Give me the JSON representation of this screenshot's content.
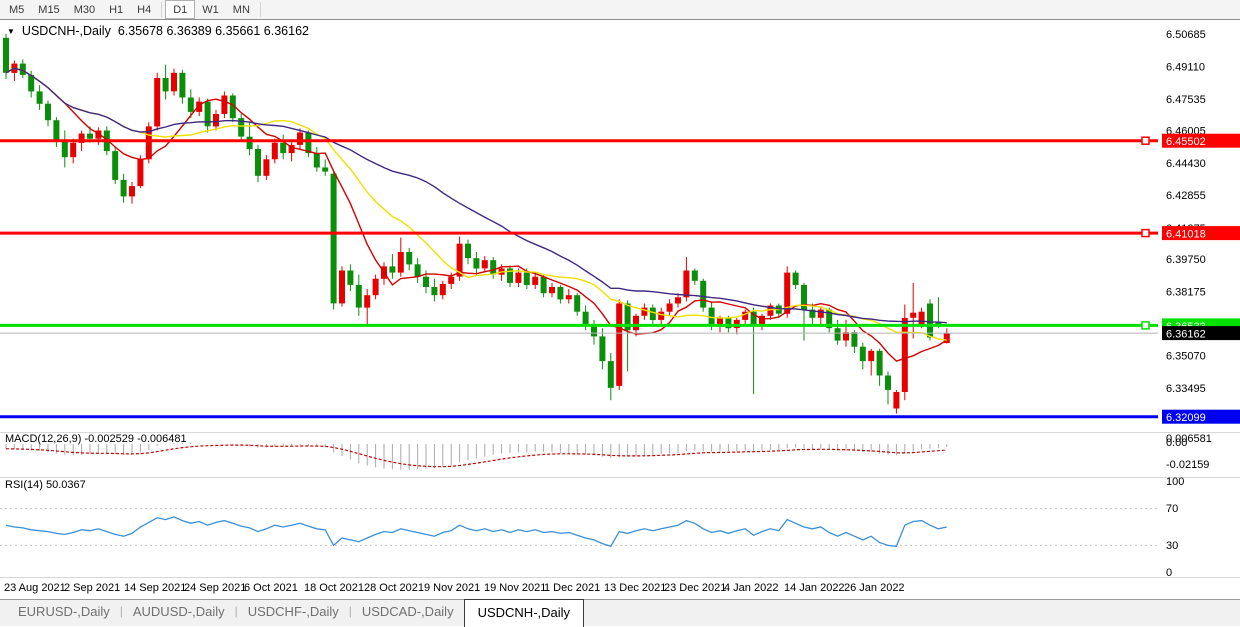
{
  "toolbar": {
    "timeframes": [
      "M5",
      "M15",
      "M30",
      "H1",
      "H4",
      "D1",
      "W1",
      "MN"
    ],
    "active": "D1"
  },
  "title": {
    "symbol": "USDCNH-,Daily",
    "quote": "6.35678 6.36389 6.35661 6.36162"
  },
  "indicator_labels": {
    "macd": "MACD(12,26,9) -0.002529 -0.006481",
    "rsi": "RSI(14) 50.0367"
  },
  "macd_scale": [
    "0.006581",
    "0.00",
    "-0.02159"
  ],
  "rsi_scale": [
    "100",
    "70",
    "30",
    "0"
  ],
  "tabs": {
    "items": [
      "EURUSD-,Daily",
      "AUDUSD-,Daily",
      "USDCHF-,Daily",
      "USDCAD-,Daily",
      "USDCNH-,Daily"
    ],
    "active": "USDCNH-,Daily"
  },
  "chart_data": {
    "type": "candlestick",
    "symbol": "USDCNH",
    "timeframe": "Daily",
    "title": "USDCNH-,Daily",
    "current_ohlc": {
      "open": 6.35678,
      "high": 6.36389,
      "low": 6.35661,
      "close": 6.36162
    },
    "ylim": [
      6.315,
      6.508
    ],
    "y_ticks": [
      6.50685,
      6.4911,
      6.47535,
      6.46005,
      6.4443,
      6.42855,
      6.41275,
      6.3975,
      6.38175,
      6.3507,
      6.33495
    ],
    "x_dates": [
      "23 Aug 2021",
      "2 Sep 2021",
      "14 Sep 2021",
      "24 Sep 2021",
      "6 Oct 2021",
      "18 Oct 2021",
      "28 Oct 2021",
      "9 Nov 2021",
      "19 Nov 2021",
      "1 Dec 2021",
      "13 Dec 2021",
      "23 Dec 2021",
      "4 Jan 2022",
      "14 Jan 2022",
      "26 Jan 2022"
    ],
    "hlines": [
      {
        "price": 6.45502,
        "label": "6.45502",
        "color": "#fe0000",
        "w": 3,
        "marker": true
      },
      {
        "price": 6.41018,
        "label": "6.41018",
        "color": "#fe0000",
        "w": 3,
        "marker": true
      },
      {
        "price": 6.36533,
        "label": "6.36533",
        "color": "#00e100",
        "w": 3,
        "marker": true
      },
      {
        "price": 6.36162,
        "label": "6.36162",
        "color": "#b4b4b4",
        "w": 1,
        "marker": false,
        "label_bg": "#000000"
      },
      {
        "price": 6.32099,
        "label": "6.32099",
        "color": "#0000f0",
        "w": 3,
        "marker": false
      }
    ],
    "candle_colors": {
      "bull": "#e60000",
      "bear": "#0b8f0b"
    },
    "ma_periods": {
      "fast": 8,
      "mid": 17,
      "slow": 34
    },
    "ma_colors": {
      "fast": "#d40000",
      "mid": "#f0e000",
      "slow": "#402882"
    },
    "candles": [
      [
        6.505,
        6.5069,
        6.485,
        6.488
      ],
      [
        6.488,
        6.494,
        6.484,
        6.4925
      ],
      [
        6.4925,
        6.4945,
        6.4855,
        6.487
      ],
      [
        6.487,
        6.489,
        6.476,
        6.479
      ],
      [
        6.479,
        6.482,
        6.47,
        6.473
      ],
      [
        6.473,
        6.4745,
        6.462,
        6.465
      ],
      [
        6.465,
        6.4665,
        6.452,
        6.4545
      ],
      [
        6.4545,
        6.46,
        6.442,
        6.447
      ],
      [
        6.447,
        6.456,
        6.444,
        6.454
      ],
      [
        6.454,
        6.46,
        6.45,
        6.4585
      ],
      [
        6.4585,
        6.462,
        6.454,
        6.456
      ],
      [
        6.456,
        6.4615,
        6.453,
        6.46
      ],
      [
        6.46,
        6.462,
        6.448,
        6.45
      ],
      [
        6.45,
        6.452,
        6.434,
        6.436
      ],
      [
        6.436,
        6.439,
        6.425,
        6.428
      ],
      [
        6.428,
        6.435,
        6.4245,
        6.433
      ],
      [
        6.433,
        6.448,
        6.432,
        6.446
      ],
      [
        6.446,
        6.464,
        6.444,
        6.462
      ],
      [
        6.462,
        6.488,
        6.46,
        6.4855
      ],
      [
        6.4855,
        6.492,
        6.475,
        6.479
      ],
      [
        6.479,
        6.49,
        6.477,
        6.488
      ],
      [
        6.488,
        6.4895,
        6.473,
        6.476
      ],
      [
        6.476,
        6.48,
        6.466,
        6.469
      ],
      [
        6.469,
        6.476,
        6.467,
        6.474
      ],
      [
        6.474,
        6.4755,
        6.459,
        6.462
      ],
      [
        6.462,
        6.47,
        6.46,
        6.468
      ],
      [
        6.468,
        6.479,
        6.466,
        6.477
      ],
      [
        6.477,
        6.478,
        6.464,
        6.466
      ],
      [
        6.466,
        6.468,
        6.455,
        6.457
      ],
      [
        6.457,
        6.464,
        6.448,
        6.451
      ],
      [
        6.451,
        6.453,
        6.435,
        6.438
      ],
      [
        6.438,
        6.448,
        6.436,
        6.446
      ],
      [
        6.446,
        6.456,
        6.444,
        6.454
      ],
      [
        6.454,
        6.458,
        6.446,
        6.449
      ],
      [
        6.449,
        6.4545,
        6.445,
        6.453
      ],
      [
        6.453,
        6.461,
        6.451,
        6.459
      ],
      [
        6.459,
        6.46,
        6.447,
        6.449
      ],
      [
        6.449,
        6.452,
        6.44,
        6.442
      ],
      [
        6.442,
        6.446,
        6.438,
        6.44
      ],
      [
        6.439,
        6.44,
        6.373,
        6.376
      ],
      [
        6.376,
        6.394,
        6.3745,
        6.392
      ],
      [
        6.392,
        6.395,
        6.382,
        6.385
      ],
      [
        6.385,
        6.39,
        6.37,
        6.374
      ],
      [
        6.374,
        6.383,
        6.366,
        6.38
      ],
      [
        6.38,
        6.39,
        6.378,
        6.388
      ],
      [
        6.388,
        6.396,
        6.385,
        6.394
      ],
      [
        6.394,
        6.4,
        6.388,
        6.391
      ],
      [
        6.391,
        6.408,
        6.389,
        6.401
      ],
      [
        6.401,
        6.403,
        6.392,
        6.395
      ],
      [
        6.395,
        6.398,
        6.386,
        6.389
      ],
      [
        6.389,
        6.392,
        6.381,
        6.384
      ],
      [
        6.384,
        6.388,
        6.377,
        6.38
      ],
      [
        6.38,
        6.387,
        6.378,
        6.3855
      ],
      [
        6.3855,
        6.391,
        6.383,
        6.389
      ],
      [
        6.389,
        6.4085,
        6.387,
        6.405
      ],
      [
        6.405,
        6.407,
        6.395,
        6.398
      ],
      [
        6.398,
        6.401,
        6.39,
        6.393
      ],
      [
        6.393,
        6.399,
        6.391,
        6.397
      ],
      [
        6.397,
        6.3985,
        6.388,
        6.39
      ],
      [
        6.39,
        6.395,
        6.387,
        6.393
      ],
      [
        6.393,
        6.3945,
        6.384,
        6.386
      ],
      [
        6.386,
        6.393,
        6.384,
        6.391
      ],
      [
        6.391,
        6.393,
        6.383,
        6.385
      ],
      [
        6.385,
        6.391,
        6.383,
        6.389
      ],
      [
        6.389,
        6.39,
        6.379,
        6.381
      ],
      [
        6.381,
        6.386,
        6.379,
        6.384
      ],
      [
        6.384,
        6.385,
        6.376,
        6.378
      ],
      [
        6.378,
        6.383,
        6.376,
        6.38
      ],
      [
        6.38,
        6.381,
        6.37,
        6.372
      ],
      [
        6.372,
        6.375,
        6.363,
        6.365
      ],
      [
        6.365,
        6.368,
        6.356,
        6.36
      ],
      [
        6.36,
        6.364,
        6.344,
        6.348
      ],
      [
        6.348,
        6.352,
        6.329,
        6.335
      ],
      [
        6.336,
        6.378,
        6.334,
        6.376
      ],
      [
        6.376,
        6.3775,
        6.343,
        6.363
      ],
      [
        6.363,
        6.371,
        6.36,
        6.37
      ],
      [
        6.37,
        6.376,
        6.368,
        6.374
      ],
      [
        6.374,
        6.3755,
        6.366,
        6.368
      ],
      [
        6.368,
        6.374,
        6.366,
        6.372
      ],
      [
        6.372,
        6.378,
        6.37,
        6.376
      ],
      [
        6.376,
        6.381,
        6.374,
        6.379
      ],
      [
        6.379,
        6.3985,
        6.377,
        6.392
      ],
      [
        6.392,
        6.393,
        6.385,
        6.387
      ],
      [
        6.387,
        6.388,
        6.372,
        6.374
      ],
      [
        6.374,
        6.377,
        6.363,
        6.365
      ],
      [
        6.365,
        6.37,
        6.362,
        6.369
      ],
      [
        6.369,
        6.37,
        6.362,
        6.364
      ],
      [
        6.364,
        6.369,
        6.361,
        6.368
      ],
      [
        6.368,
        6.373,
        6.365,
        6.372
      ],
      [
        6.372,
        6.374,
        6.332,
        6.366
      ],
      [
        6.366,
        6.371,
        6.363,
        6.37
      ],
      [
        6.37,
        6.376,
        6.368,
        6.375
      ],
      [
        6.375,
        6.376,
        6.369,
        6.371
      ],
      [
        6.371,
        6.394,
        6.369,
        6.391
      ],
      [
        6.391,
        6.392,
        6.383,
        6.385
      ],
      [
        6.385,
        6.386,
        6.358,
        6.373
      ],
      [
        6.373,
        6.376,
        6.365,
        6.369
      ],
      [
        6.369,
        6.374,
        6.366,
        6.373
      ],
      [
        6.373,
        6.374,
        6.362,
        6.364
      ],
      [
        6.364,
        6.368,
        6.356,
        6.358
      ],
      [
        6.358,
        6.368,
        6.355,
        6.362
      ],
      [
        6.362,
        6.363,
        6.352,
        6.355
      ],
      [
        6.355,
        6.357,
        6.344,
        6.348
      ],
      [
        6.348,
        6.354,
        6.341,
        6.353
      ],
      [
        6.353,
        6.354,
        6.336,
        6.341
      ],
      [
        6.341,
        6.343,
        6.327,
        6.334
      ],
      [
        6.325,
        6.334,
        6.3225,
        6.333
      ],
      [
        6.333,
        6.3755,
        6.329,
        6.369
      ],
      [
        6.369,
        6.386,
        6.359,
        6.3715
      ],
      [
        6.366,
        6.374,
        6.364,
        6.372
      ],
      [
        6.376,
        6.378,
        6.358,
        6.3595
      ],
      [
        6.367,
        6.379,
        6.364,
        6.365
      ],
      [
        6.35678,
        6.36389,
        6.35661,
        6.36162
      ]
    ],
    "macd": {
      "params": "12,26,9",
      "main_last": -0.002529,
      "signal_last": -0.006481,
      "bar_color": "#a9a9a9",
      "signal_color": "#cc0000",
      "main": [
        -0.004,
        -0.0045,
        -0.005,
        -0.0055,
        -0.006,
        -0.007,
        -0.008,
        -0.009,
        -0.0095,
        -0.009,
        -0.0085,
        -0.008,
        -0.008,
        -0.0085,
        -0.009,
        -0.0085,
        -0.007,
        -0.005,
        -0.002,
        -0.0005,
        0.0005,
        0.001,
        0.0005,
        0.0005,
        0.0,
        -0.0005,
        0.0,
        -0.0005,
        -0.001,
        -0.002,
        -0.003,
        -0.003,
        -0.0025,
        -0.002,
        -0.0015,
        -0.001,
        -0.0015,
        -0.002,
        -0.0025,
        -0.007,
        -0.01,
        -0.013,
        -0.016,
        -0.018,
        -0.0195,
        -0.0205,
        -0.021,
        -0.0215,
        -0.0215,
        -0.021,
        -0.0205,
        -0.02,
        -0.019,
        -0.0175,
        -0.015,
        -0.0135,
        -0.012,
        -0.0105,
        -0.009,
        -0.008,
        -0.0075,
        -0.007,
        -0.007,
        -0.0065,
        -0.0065,
        -0.007,
        -0.0075,
        -0.008,
        -0.0085,
        -0.009,
        -0.0095,
        -0.0105,
        -0.0115,
        -0.011,
        -0.0105,
        -0.01,
        -0.0095,
        -0.009,
        -0.0085,
        -0.008,
        -0.0075,
        -0.006,
        -0.0055,
        -0.006,
        -0.0065,
        -0.0065,
        -0.0065,
        -0.006,
        -0.0055,
        -0.006,
        -0.0055,
        -0.005,
        -0.005,
        -0.0035,
        -0.003,
        -0.0035,
        -0.004,
        -0.004,
        -0.0045,
        -0.0055,
        -0.0055,
        -0.006,
        -0.007,
        -0.007,
        -0.008,
        -0.009,
        -0.0095,
        -0.008,
        -0.006,
        -0.0045,
        -0.004,
        -0.0035,
        -0.0025
      ]
    },
    "rsi": {
      "period": 14,
      "last": 50.0367,
      "color": "#3a8fd9",
      "levels": [
        70,
        30
      ],
      "values": [
        52,
        50,
        49,
        47,
        46,
        45,
        43,
        42,
        44,
        47,
        46,
        48,
        45,
        42,
        40,
        43,
        50,
        55,
        60,
        58,
        61,
        57,
        54,
        56,
        52,
        55,
        57,
        54,
        51,
        49,
        45,
        48,
        52,
        50,
        52,
        54,
        51,
        48,
        47,
        30,
        38,
        36,
        34,
        38,
        42,
        45,
        44,
        48,
        46,
        44,
        42,
        40,
        44,
        46,
        52,
        48,
        46,
        48,
        45,
        47,
        44,
        47,
        45,
        47,
        44,
        45,
        43,
        44,
        41,
        38,
        36,
        32,
        29,
        45,
        43,
        46,
        48,
        46,
        48,
        50,
        52,
        57,
        54,
        48,
        44,
        46,
        43,
        46,
        48,
        41,
        45,
        48,
        46,
        58,
        54,
        50,
        48,
        50,
        44,
        40,
        44,
        40,
        36,
        40,
        33,
        30,
        29,
        52,
        56,
        57,
        52,
        48,
        50
      ]
    }
  }
}
